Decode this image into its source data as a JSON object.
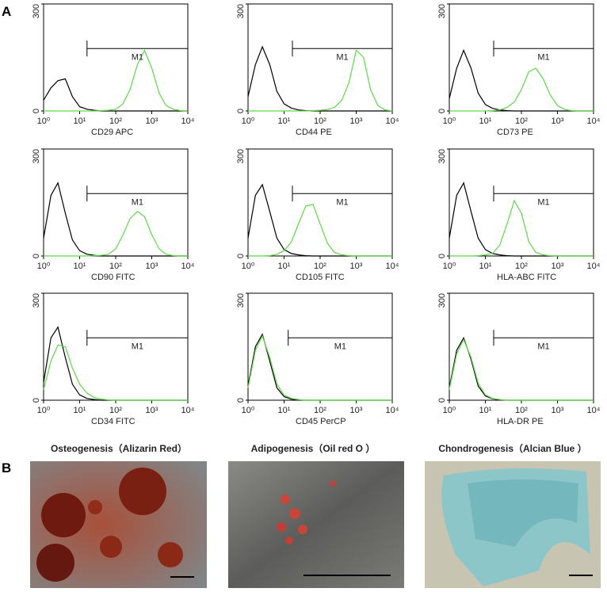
{
  "figure": {
    "panel_labels": [
      "A",
      "B"
    ],
    "images": [
      {
        "caption": "Osteogenesis（Alizarin Red）"
      },
      {
        "caption": "Adipogenesis（Oil red O ）"
      },
      {
        "caption": "Chondrogenesis（Alcian Blue ）"
      }
    ]
  },
  "chart_data": [
    {
      "type": "line",
      "xlabel": "CD29 APC",
      "xscale": "log",
      "xlim": [
        1,
        10000
      ],
      "ylim": [
        0,
        300
      ],
      "xticks": [
        {
          "value": 1,
          "label": "10⁰"
        },
        {
          "value": 10,
          "label": "10¹"
        },
        {
          "value": 100,
          "label": "10²"
        },
        {
          "value": 1000,
          "label": "10³"
        },
        {
          "value": 10000,
          "label": "10⁴"
        }
      ],
      "yticks": [
        0,
        300
      ],
      "gate": {
        "label": "M1",
        "range": [
          16,
          10000
        ],
        "y": 175
      },
      "x": [
        1,
        1.6,
        2.5,
        4,
        6.3,
        10,
        16,
        25,
        40,
        63,
        100,
        160,
        250,
        400,
        630,
        1000,
        1600,
        2500,
        4000,
        6300,
        10000
      ],
      "series": [
        {
          "color": "#000000",
          "values": [
            30,
            65,
            85,
            90,
            40,
            12,
            5,
            2,
            0,
            0,
            0,
            0,
            0,
            0,
            0,
            0,
            0,
            0,
            0,
            0,
            0
          ]
        },
        {
          "color": "#5fd64a",
          "values": [
            0,
            0,
            0,
            0,
            0,
            0,
            0,
            0,
            1,
            2,
            5,
            20,
            60,
            130,
            170,
            120,
            50,
            15,
            5,
            1,
            0
          ]
        }
      ]
    },
    {
      "type": "line",
      "xlabel": "CD44 PE",
      "xscale": "log",
      "xlim": [
        1,
        10000
      ],
      "ylim": [
        0,
        300
      ],
      "xticks": [
        {
          "value": 1,
          "label": "10⁰"
        },
        {
          "value": 10,
          "label": "10¹"
        },
        {
          "value": 100,
          "label": "10²"
        },
        {
          "value": 1000,
          "label": "10³"
        },
        {
          "value": 10000,
          "label": "10⁴"
        }
      ],
      "yticks": [
        0,
        300
      ],
      "gate": {
        "label": "M1",
        "range": [
          17,
          10000
        ],
        "y": 175
      },
      "x": [
        1,
        1.6,
        2.5,
        4,
        6.3,
        10,
        16,
        25,
        40,
        63,
        100,
        160,
        250,
        400,
        630,
        1000,
        1600,
        2500,
        4000,
        6300,
        10000
      ],
      "series": [
        {
          "color": "#000000",
          "values": [
            40,
            130,
            180,
            130,
            55,
            20,
            8,
            3,
            1,
            0,
            0,
            0,
            0,
            0,
            0,
            0,
            0,
            0,
            0,
            0,
            0
          ]
        },
        {
          "color": "#5fd64a",
          "values": [
            0,
            0,
            0,
            0,
            0,
            0,
            0,
            0,
            0,
            1,
            2,
            4,
            10,
            30,
            80,
            170,
            150,
            60,
            15,
            3,
            0
          ]
        }
      ]
    },
    {
      "type": "line",
      "xlabel": "CD73 PE",
      "xscale": "log",
      "xlim": [
        1,
        10000
      ],
      "ylim": [
        0,
        300
      ],
      "xticks": [
        {
          "value": 1,
          "label": "10⁰"
        },
        {
          "value": 10,
          "label": "10¹"
        },
        {
          "value": 100,
          "label": "10²"
        },
        {
          "value": 1000,
          "label": "10³"
        },
        {
          "value": 10000,
          "label": "10⁴"
        }
      ],
      "yticks": [
        0,
        300
      ],
      "gate": {
        "label": "M1",
        "range": [
          17,
          10000
        ],
        "y": 175
      },
      "x": [
        1,
        1.6,
        2.5,
        4,
        6.3,
        10,
        16,
        25,
        40,
        63,
        100,
        160,
        250,
        400,
        630,
        1000,
        1600,
        2500,
        4000,
        6300,
        10000
      ],
      "series": [
        {
          "color": "#000000",
          "values": [
            35,
            120,
            170,
            120,
            50,
            18,
            7,
            3,
            1,
            0,
            0,
            0,
            0,
            0,
            0,
            0,
            0,
            0,
            0,
            0,
            0
          ]
        },
        {
          "color": "#5fd64a",
          "values": [
            0,
            0,
            0,
            0,
            0,
            0,
            1,
            3,
            10,
            25,
            60,
            110,
            120,
            90,
            45,
            15,
            4,
            1,
            0,
            0,
            0
          ]
        }
      ]
    },
    {
      "type": "line",
      "xlabel": "CD90 FITC",
      "xscale": "log",
      "xlim": [
        1,
        10000
      ],
      "ylim": [
        0,
        300
      ],
      "xticks": [
        {
          "value": 1,
          "label": "10⁰"
        },
        {
          "value": 10,
          "label": "10¹"
        },
        {
          "value": 100,
          "label": "10²"
        },
        {
          "value": 1000,
          "label": "10³"
        },
        {
          "value": 10000,
          "label": "10⁴"
        }
      ],
      "yticks": [
        0,
        300
      ],
      "gate": {
        "label": "M1",
        "range": [
          16,
          10000
        ],
        "y": 175
      },
      "x": [
        1,
        1.6,
        2.5,
        4,
        6.3,
        10,
        16,
        25,
        40,
        63,
        100,
        160,
        250,
        400,
        630,
        1000,
        1600,
        2500,
        4000,
        6300,
        10000
      ],
      "series": [
        {
          "color": "#000000",
          "values": [
            50,
            170,
            205,
            120,
            45,
            15,
            5,
            2,
            0,
            0,
            0,
            0,
            0,
            0,
            0,
            0,
            0,
            0,
            0,
            0,
            0
          ]
        },
        {
          "color": "#5fd64a",
          "values": [
            0,
            0,
            0,
            0,
            0,
            0,
            0,
            1,
            2,
            5,
            20,
            60,
            105,
            125,
            110,
            60,
            20,
            5,
            1,
            0,
            0
          ]
        }
      ]
    },
    {
      "type": "line",
      "xlabel": "CD105 FITC",
      "xscale": "log",
      "xlim": [
        1,
        10000
      ],
      "ylim": [
        0,
        300
      ],
      "xticks": [
        {
          "value": 1,
          "label": "10⁰"
        },
        {
          "value": 10,
          "label": "10¹"
        },
        {
          "value": 100,
          "label": "10²"
        },
        {
          "value": 1000,
          "label": "10³"
        },
        {
          "value": 10000,
          "label": "10⁴"
        }
      ],
      "yticks": [
        0,
        300
      ],
      "gate": {
        "label": "M1",
        "range": [
          17,
          10000
        ],
        "y": 175
      },
      "x": [
        1,
        1.6,
        2.5,
        4,
        6.3,
        10,
        16,
        25,
        40,
        63,
        100,
        160,
        250,
        400,
        630,
        1000,
        1600,
        2500,
        4000,
        6300,
        10000
      ],
      "series": [
        {
          "color": "#000000",
          "values": [
            50,
            170,
            200,
            125,
            50,
            18,
            7,
            3,
            1,
            0,
            0,
            0,
            0,
            0,
            0,
            0,
            0,
            0,
            0,
            0,
            0
          ]
        },
        {
          "color": "#5fd64a",
          "values": [
            0,
            0,
            0,
            1,
            5,
            15,
            40,
            90,
            140,
            145,
            90,
            35,
            10,
            3,
            1,
            0,
            0,
            0,
            0,
            0,
            0
          ]
        }
      ]
    },
    {
      "type": "line",
      "xlabel": "HLA-ABC FITC",
      "xscale": "log",
      "xlim": [
        1,
        10000
      ],
      "ylim": [
        0,
        300
      ],
      "xticks": [
        {
          "value": 1,
          "label": "10⁰"
        },
        {
          "value": 10,
          "label": "10¹"
        },
        {
          "value": 100,
          "label": "10²"
        },
        {
          "value": 1000,
          "label": "10³"
        },
        {
          "value": 10000,
          "label": "10⁴"
        }
      ],
      "yticks": [
        0,
        300
      ],
      "gate": {
        "label": "M1",
        "range": [
          17,
          10000
        ],
        "y": 175
      },
      "x": [
        1,
        1.6,
        2.5,
        4,
        6.3,
        10,
        16,
        25,
        40,
        63,
        100,
        160,
        250,
        400,
        630,
        1000,
        1600,
        2500,
        4000,
        6300,
        10000
      ],
      "series": [
        {
          "color": "#000000",
          "values": [
            50,
            170,
            205,
            125,
            50,
            18,
            7,
            3,
            1,
            0,
            0,
            0,
            0,
            0,
            0,
            0,
            0,
            0,
            0,
            0,
            0
          ]
        },
        {
          "color": "#5fd64a",
          "values": [
            0,
            0,
            0,
            0,
            1,
            3,
            8,
            30,
            90,
            155,
            120,
            40,
            10,
            3,
            1,
            0,
            0,
            0,
            0,
            0,
            0
          ]
        }
      ]
    },
    {
      "type": "line",
      "xlabel": "CD34 FITC",
      "xscale": "log",
      "xlim": [
        1,
        10000
      ],
      "ylim": [
        0,
        300
      ],
      "xticks": [
        {
          "value": 1,
          "label": "10⁰"
        },
        {
          "value": 10,
          "label": "10¹"
        },
        {
          "value": 100,
          "label": "10²"
        },
        {
          "value": 1000,
          "label": "10³"
        },
        {
          "value": 10000,
          "label": "10⁴"
        }
      ],
      "yticks": [
        0,
        300
      ],
      "gate": {
        "label": "M1",
        "range": [
          16,
          10000
        ],
        "y": 175
      },
      "x": [
        1,
        1.6,
        2.5,
        4,
        6.3,
        10,
        16,
        25,
        40,
        63,
        100,
        160,
        250,
        400,
        630,
        1000,
        1600,
        2500,
        4000,
        6300,
        10000
      ],
      "series": [
        {
          "color": "#000000",
          "values": [
            50,
            175,
            205,
            120,
            45,
            15,
            5,
            2,
            0,
            0,
            0,
            0,
            0,
            0,
            0,
            0,
            0,
            0,
            0,
            0,
            0
          ]
        },
        {
          "color": "#5fd64a",
          "values": [
            30,
            110,
            155,
            150,
            90,
            45,
            20,
            8,
            3,
            1,
            0,
            0,
            0,
            0,
            0,
            0,
            0,
            0,
            0,
            0,
            0
          ]
        }
      ]
    },
    {
      "type": "line",
      "xlabel": "CD45 PerCP",
      "xscale": "log",
      "xlim": [
        1,
        10000
      ],
      "ylim": [
        0,
        300
      ],
      "xticks": [
        {
          "value": 1,
          "label": "10⁰"
        },
        {
          "value": 10,
          "label": "10¹"
        },
        {
          "value": 100,
          "label": "10²"
        },
        {
          "value": 1000,
          "label": "10³"
        },
        {
          "value": 10000,
          "label": "10⁴"
        }
      ],
      "yticks": [
        0,
        300
      ],
      "gate": {
        "label": "M1",
        "range": [
          13,
          10000
        ],
        "y": 175
      },
      "x": [
        1,
        1.6,
        2.5,
        4,
        6.3,
        10,
        16,
        25,
        40,
        63,
        100,
        160,
        250,
        400,
        630,
        1000,
        1600,
        2500,
        4000,
        6300,
        10000
      ],
      "series": [
        {
          "color": "#000000",
          "values": [
            40,
            150,
            185,
            110,
            35,
            10,
            3,
            1,
            0,
            0,
            0,
            0,
            0,
            0,
            0,
            0,
            0,
            0,
            0,
            0,
            0
          ]
        },
        {
          "color": "#5fd64a",
          "values": [
            35,
            140,
            180,
            120,
            45,
            14,
            5,
            2,
            0,
            0,
            0,
            0,
            0,
            0,
            0,
            0,
            0,
            0,
            0,
            0,
            0
          ]
        }
      ]
    },
    {
      "type": "line",
      "xlabel": "HLA-DR PE",
      "xscale": "log",
      "xlim": [
        1,
        10000
      ],
      "ylim": [
        0,
        300
      ],
      "xticks": [
        {
          "value": 1,
          "label": "10⁰"
        },
        {
          "value": 10,
          "label": "10¹"
        },
        {
          "value": 100,
          "label": "10²"
        },
        {
          "value": 1000,
          "label": "10³"
        },
        {
          "value": 10000,
          "label": "10⁴"
        }
      ],
      "yticks": [
        0,
        300
      ],
      "gate": {
        "label": "M1",
        "range": [
          17,
          10000
        ],
        "y": 175
      },
      "x": [
        1,
        1.6,
        2.5,
        4,
        6.3,
        10,
        16,
        25,
        40,
        63,
        100,
        160,
        250,
        400,
        630,
        1000,
        1600,
        2500,
        4000,
        6300,
        10000
      ],
      "series": [
        {
          "color": "#000000",
          "values": [
            35,
            140,
            175,
            115,
            40,
            12,
            4,
            1,
            0,
            0,
            0,
            0,
            0,
            0,
            0,
            0,
            0,
            0,
            0,
            0,
            0
          ]
        },
        {
          "color": "#5fd64a",
          "values": [
            30,
            130,
            170,
            120,
            48,
            15,
            5,
            2,
            0,
            0,
            0,
            0,
            0,
            0,
            0,
            0,
            0,
            0,
            0,
            0,
            0
          ]
        }
      ]
    }
  ]
}
